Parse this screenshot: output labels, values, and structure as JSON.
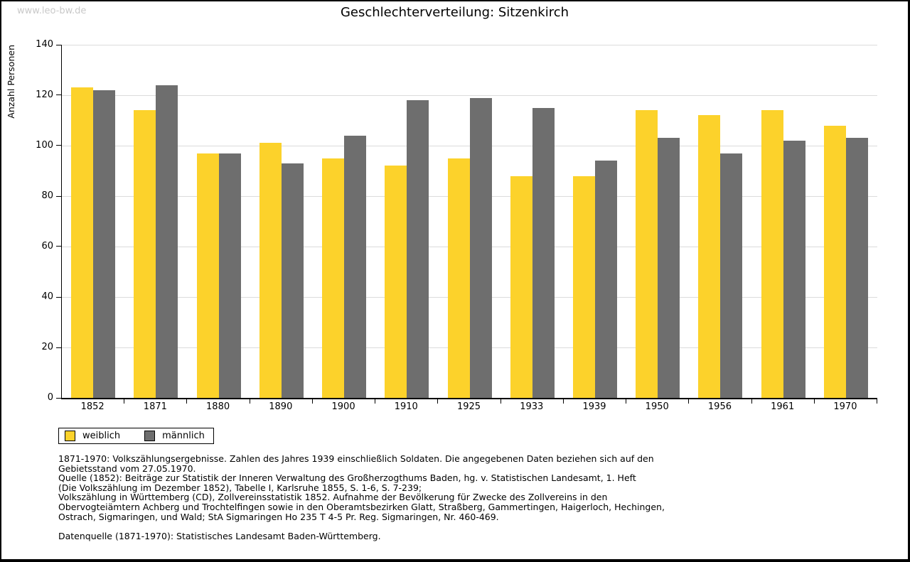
{
  "watermark": "www.leo-bw.de",
  "title": "Geschlechterverteilung: Sitzenkirch",
  "chart_data": {
    "type": "bar",
    "title": "Geschlechterverteilung: Sitzenkirch",
    "categories": [
      "1852",
      "1871",
      "1880",
      "1890",
      "1900",
      "1910",
      "1925",
      "1933",
      "1939",
      "1950",
      "1956",
      "1961",
      "1970"
    ],
    "series": [
      {
        "name": "weiblich",
        "color": "#FCD22B",
        "values": [
          123,
          114,
          97,
          101,
          95,
          92,
          95,
          88,
          88,
          114,
          112,
          114,
          108
        ]
      },
      {
        "name": "männlich",
        "color": "#6E6E6E",
        "values": [
          122,
          124,
          97,
          93,
          104,
          118,
          119,
          115,
          94,
          103,
          97,
          102,
          103
        ]
      }
    ],
    "xlabel": "",
    "ylabel": "Anzahl Personen",
    "ylim": [
      0,
      140
    ],
    "ytick_step": 20,
    "grid": true,
    "legend_position": "bottom-left"
  },
  "notes": {
    "lines": [
      "1871-1970: Volkszählungsergebnisse. Zahlen des Jahres 1939 einschließlich Soldaten. Die angegebenen Daten beziehen sich auf den",
      "Gebietsstand vom 27.05.1970.",
      "Quelle (1852): Beiträge zur Statistik der Inneren Verwaltung des Großherzogthums Baden, hg. v. Statistischen Landesamt, 1. Heft",
      "(Die Volkszählung im Dezember 1852), Tabelle I, Karlsruhe 1855, S. 1-6, S. 7-239;",
      "Volkszählung in Württemberg (CD), Zollvereinsstatistik 1852. Aufnahme der Bevölkerung für Zwecke des Zollvereins in den",
      "Obervogteiämtern Achberg und Trochtelfingen sowie in den Oberamtsbezirken Glatt, Straßberg, Gammertingen, Haigerloch, Hechingen,",
      "Ostrach, Sigmaringen, und Wald; StA Sigmaringen Ho 235 T 4-5 Pr. Reg. Sigmaringen, Nr. 460-469."
    ],
    "datasource": "Datenquelle (1871-1970): Statistisches Landesamt Baden-Württemberg."
  }
}
